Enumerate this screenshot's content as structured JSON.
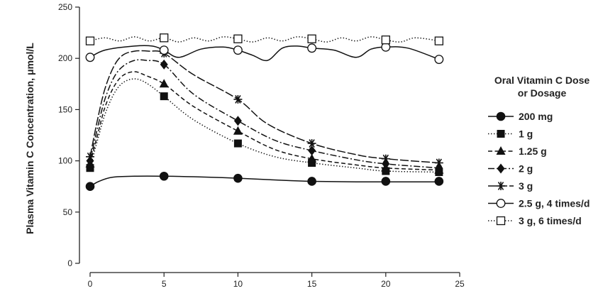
{
  "chart_data": {
    "type": "line",
    "ylabel": "Plasma Vitamin C Concentration, μmol/L",
    "xlabel": "",
    "xlim": [
      0,
      25
    ],
    "ylim": [
      0,
      250
    ],
    "x_ticks": [
      "0",
      "5",
      "10",
      "15",
      "20",
      "25"
    ],
    "y_ticks": [
      "0",
      "50",
      "100",
      "150",
      "200",
      "250"
    ],
    "legend_title_lines": [
      "Oral Vitamin C Dose",
      "or Dosage"
    ],
    "legend_position": "right",
    "series": [
      {
        "name": "200 mg",
        "marker": "filled-circle",
        "dash": "solid",
        "points": [
          [
            0,
            75
          ],
          [
            5,
            85
          ],
          [
            10,
            83
          ],
          [
            15,
            80
          ],
          [
            20,
            80
          ],
          [
            23.6,
            80
          ]
        ],
        "curve": [
          [
            0,
            75
          ],
          [
            0.6,
            80
          ],
          [
            1.5,
            84
          ],
          [
            3,
            85
          ],
          [
            5,
            85
          ],
          [
            7,
            84.5
          ],
          [
            10,
            83
          ],
          [
            13,
            81
          ],
          [
            15,
            80
          ],
          [
            18,
            79.5
          ],
          [
            20,
            79.5
          ],
          [
            23.6,
            79.5
          ]
        ]
      },
      {
        "name": "1 g",
        "marker": "filled-square",
        "dash": "dotted",
        "points": [
          [
            0,
            93
          ],
          [
            5,
            163
          ],
          [
            10,
            117
          ],
          [
            15,
            98
          ],
          [
            20,
            90
          ],
          [
            23.6,
            89
          ]
        ],
        "curve": [
          [
            0,
            93
          ],
          [
            0.5,
            120
          ],
          [
            1,
            145
          ],
          [
            1.6,
            165
          ],
          [
            2.2,
            176
          ],
          [
            3,
            180
          ],
          [
            3.8,
            176
          ],
          [
            5,
            163
          ],
          [
            7,
            140
          ],
          [
            10,
            117
          ],
          [
            12.5,
            104
          ],
          [
            15,
            98
          ],
          [
            18,
            93
          ],
          [
            20,
            90
          ],
          [
            23.6,
            89
          ]
        ]
      },
      {
        "name": "1.25 g",
        "marker": "filled-triangle",
        "dash": "dashed",
        "points": [
          [
            0,
            97
          ],
          [
            5,
            175
          ],
          [
            10,
            129
          ],
          [
            15,
            102
          ],
          [
            20,
            93
          ],
          [
            23.6,
            91
          ]
        ],
        "curve": [
          [
            0,
            97
          ],
          [
            0.5,
            125
          ],
          [
            1,
            152
          ],
          [
            1.6,
            172
          ],
          [
            2.2,
            183
          ],
          [
            3,
            187
          ],
          [
            3.8,
            183
          ],
          [
            5,
            175
          ],
          [
            7,
            153
          ],
          [
            10,
            129
          ],
          [
            12.5,
            111
          ],
          [
            15,
            102
          ],
          [
            18,
            96
          ],
          [
            20,
            93
          ],
          [
            23.6,
            91
          ]
        ]
      },
      {
        "name": "2 g",
        "marker": "filled-diamond",
        "dash": "dashdot",
        "points": [
          [
            0,
            100
          ],
          [
            5,
            194
          ],
          [
            10,
            139
          ],
          [
            15,
            110
          ],
          [
            20,
            97
          ],
          [
            23.6,
            93
          ]
        ],
        "curve": [
          [
            0,
            100
          ],
          [
            0.5,
            132
          ],
          [
            1,
            160
          ],
          [
            1.6,
            181
          ],
          [
            2.2,
            192
          ],
          [
            3,
            198
          ],
          [
            3.8,
            198
          ],
          [
            5,
            194
          ],
          [
            7,
            165
          ],
          [
            10,
            139
          ],
          [
            12.5,
            120
          ],
          [
            15,
            110
          ],
          [
            18,
            101
          ],
          [
            20,
            97
          ],
          [
            23.6,
            93
          ]
        ]
      },
      {
        "name": "3 g",
        "marker": "asterisk",
        "dash": "longdash",
        "points": [
          [
            0,
            104
          ],
          [
            5,
            205
          ],
          [
            10,
            160
          ],
          [
            15,
            117
          ],
          [
            20,
            102
          ],
          [
            23.6,
            98
          ]
        ],
        "curve": [
          [
            0,
            104
          ],
          [
            0.5,
            140
          ],
          [
            1,
            170
          ],
          [
            1.6,
            192
          ],
          [
            2.2,
            203
          ],
          [
            3,
            207
          ],
          [
            4,
            207
          ],
          [
            5,
            205
          ],
          [
            7,
            184
          ],
          [
            10,
            160
          ],
          [
            12,
            136
          ],
          [
            15,
            117
          ],
          [
            18,
            106
          ],
          [
            20,
            102
          ],
          [
            23.6,
            98
          ]
        ]
      },
      {
        "name": "2.5 g, 4 times/d",
        "marker": "open-circle",
        "dash": "solid",
        "points": [
          [
            0,
            201
          ],
          [
            5,
            208
          ],
          [
            10,
            208
          ],
          [
            15,
            210
          ],
          [
            20,
            211
          ],
          [
            23.6,
            199
          ]
        ],
        "curve": [
          [
            0,
            201
          ],
          [
            1,
            208
          ],
          [
            3,
            212
          ],
          [
            4.2,
            212
          ],
          [
            5,
            208
          ],
          [
            6,
            201
          ],
          [
            7.5,
            209
          ],
          [
            9,
            211
          ],
          [
            10,
            208
          ],
          [
            11,
            203
          ],
          [
            12,
            198
          ],
          [
            13,
            210
          ],
          [
            14,
            212
          ],
          [
            15,
            210
          ],
          [
            16.5,
            208
          ],
          [
            18,
            201
          ],
          [
            19,
            209
          ],
          [
            20,
            211
          ],
          [
            21.5,
            210
          ],
          [
            23.6,
            199
          ]
        ]
      },
      {
        "name": "3 g, 6 times/d",
        "marker": "open-square",
        "dash": "dotted",
        "points": [
          [
            0,
            217
          ],
          [
            5,
            220
          ],
          [
            10,
            219
          ],
          [
            15,
            219
          ],
          [
            20,
            218
          ],
          [
            23.6,
            217
          ]
        ],
        "curve": [
          [
            0,
            217
          ],
          [
            1,
            220
          ],
          [
            2,
            217
          ],
          [
            3,
            221
          ],
          [
            4,
            217
          ],
          [
            5,
            220
          ],
          [
            6,
            216
          ],
          [
            7,
            220
          ],
          [
            8,
            217
          ],
          [
            9,
            221
          ],
          [
            10,
            219
          ],
          [
            11,
            216
          ],
          [
            12,
            220
          ],
          [
            13,
            217
          ],
          [
            14,
            221
          ],
          [
            15,
            219
          ],
          [
            16,
            216
          ],
          [
            17,
            220
          ],
          [
            18,
            217
          ],
          [
            19,
            221
          ],
          [
            20,
            218
          ],
          [
            21,
            216
          ],
          [
            22,
            220
          ],
          [
            23.6,
            217
          ]
        ]
      }
    ]
  }
}
